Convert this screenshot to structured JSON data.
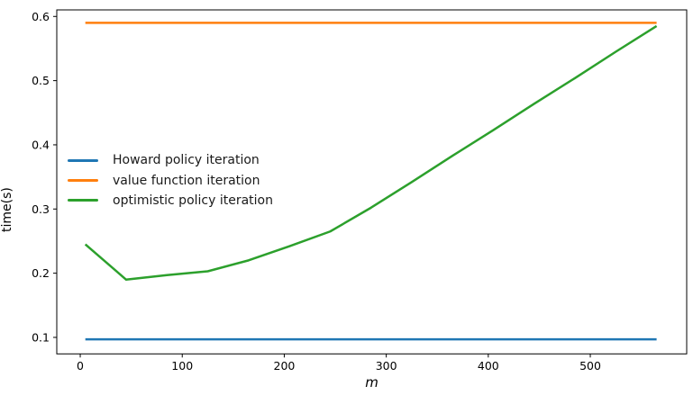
{
  "chart_data": {
    "type": "line",
    "title": "",
    "xlabel": "m",
    "ylabel": "time(s)",
    "grid": false,
    "legend_position": "center left",
    "xlim": [
      -23,
      594.5
    ],
    "ylim": [
      0.0743,
      0.6102
    ],
    "xticks": [
      0,
      100,
      200,
      300,
      400,
      500
    ],
    "xtick_labels": [
      "0",
      "100",
      "200",
      "300",
      "400",
      "500"
    ],
    "yticks": [
      0.1,
      0.2,
      0.3,
      0.4,
      0.5,
      0.6
    ],
    "ytick_labels": [
      "0.1",
      "0.2",
      "0.3",
      "0.4",
      "0.5",
      "0.6"
    ],
    "x": [
      5,
      45,
      85,
      125,
      165,
      205,
      245,
      285,
      325,
      365,
      405,
      445,
      485,
      525,
      565
    ],
    "series": [
      {
        "name": "Howard policy iteration",
        "color": "#1f77b4",
        "values": [
          0.097,
          0.097,
          0.097,
          0.097,
          0.097,
          0.097,
          0.097,
          0.097,
          0.097,
          0.097,
          0.097,
          0.097,
          0.097,
          0.097,
          0.097
        ]
      },
      {
        "name": "value function iteration",
        "color": "#ff7f0e",
        "values": [
          0.59,
          0.59,
          0.59,
          0.59,
          0.59,
          0.59,
          0.59,
          0.59,
          0.59,
          0.59,
          0.59,
          0.59,
          0.59,
          0.59,
          0.59
        ]
      },
      {
        "name": "optimistic policy iteration",
        "color": "#2ca02c",
        "values": [
          0.245,
          0.19,
          0.197,
          0.203,
          0.22,
          0.242,
          0.265,
          0.302,
          0.342,
          0.383,
          0.423,
          0.464,
          0.504,
          0.545,
          0.585
        ]
      }
    ]
  }
}
